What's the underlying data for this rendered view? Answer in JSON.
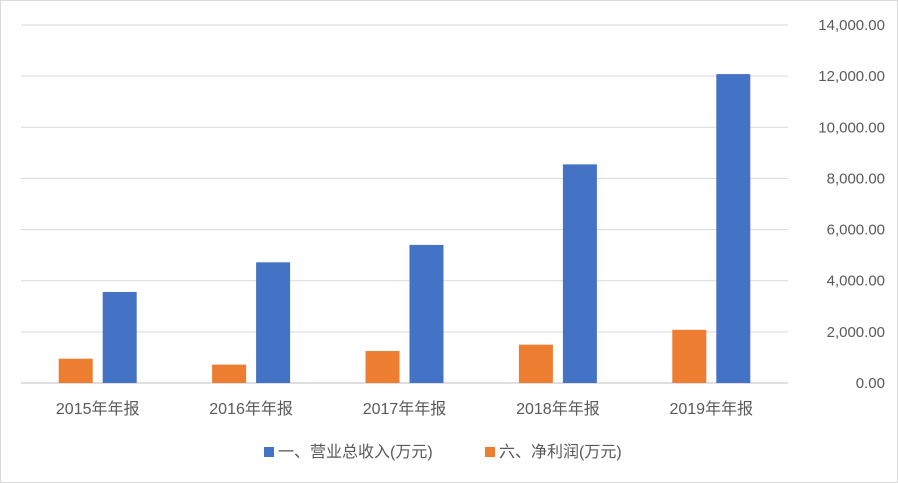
{
  "chart_data": {
    "type": "bar",
    "categories": [
      "2015年年报",
      "2016年年报",
      "2017年年报",
      "2018年年报",
      "2019年年报"
    ],
    "series": [
      {
        "name": "六、净利润(万元)",
        "color": "#ed7d31",
        "values": [
          950,
          720,
          1250,
          1500,
          2080
        ]
      },
      {
        "name": "一、营业总收入(万元)",
        "color": "#4472c4",
        "values": [
          3560,
          4720,
          5400,
          8550,
          12080
        ]
      }
    ],
    "y_axis": {
      "position": "right",
      "ylim": [
        0,
        14000
      ],
      "ticks": [
        0,
        2000,
        4000,
        6000,
        8000,
        10000,
        12000,
        14000
      ],
      "tick_labels": [
        "0.00",
        "2,000.00",
        "4,000.00",
        "6,000.00",
        "8,000.00",
        "10,000.00",
        "12,000.00",
        "14,000.00"
      ]
    },
    "grid": true,
    "legend": {
      "placement": "bottom",
      "entries": [
        {
          "label": "一、营业总收入(万元)",
          "color": "#4472c4"
        },
        {
          "label": "六、净利润(万元)",
          "color": "#ed7d31"
        }
      ]
    },
    "title": "",
    "xlabel": "",
    "ylabel": ""
  }
}
